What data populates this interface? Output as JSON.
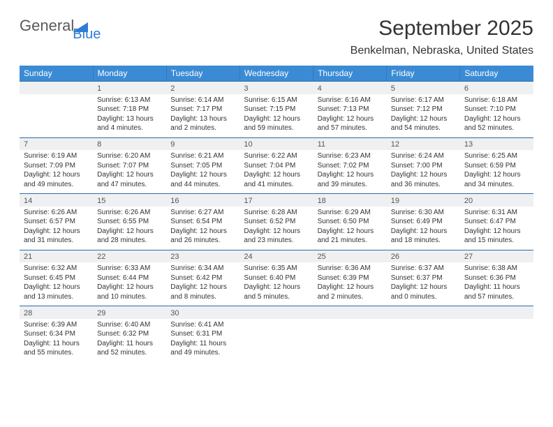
{
  "logo": {
    "general": "General",
    "blue": "Blue"
  },
  "title": "September 2025",
  "location": "Benkelman, Nebraska, United States",
  "colors": {
    "header_bg": "#3b8bd4",
    "header_text": "#ffffff",
    "daynum_bg": "#eef0f1",
    "row_border": "#2f6aa8",
    "text": "#333333",
    "logo_gray": "#5a5a5a",
    "logo_blue": "#2e7cd6"
  },
  "weekdays": [
    "Sunday",
    "Monday",
    "Tuesday",
    "Wednesday",
    "Thursday",
    "Friday",
    "Saturday"
  ],
  "weeks": [
    [
      {
        "n": "",
        "sr": "",
        "ss": "",
        "dl": ""
      },
      {
        "n": "1",
        "sr": "Sunrise: 6:13 AM",
        "ss": "Sunset: 7:18 PM",
        "dl": "Daylight: 13 hours and 4 minutes."
      },
      {
        "n": "2",
        "sr": "Sunrise: 6:14 AM",
        "ss": "Sunset: 7:17 PM",
        "dl": "Daylight: 13 hours and 2 minutes."
      },
      {
        "n": "3",
        "sr": "Sunrise: 6:15 AM",
        "ss": "Sunset: 7:15 PM",
        "dl": "Daylight: 12 hours and 59 minutes."
      },
      {
        "n": "4",
        "sr": "Sunrise: 6:16 AM",
        "ss": "Sunset: 7:13 PM",
        "dl": "Daylight: 12 hours and 57 minutes."
      },
      {
        "n": "5",
        "sr": "Sunrise: 6:17 AM",
        "ss": "Sunset: 7:12 PM",
        "dl": "Daylight: 12 hours and 54 minutes."
      },
      {
        "n": "6",
        "sr": "Sunrise: 6:18 AM",
        "ss": "Sunset: 7:10 PM",
        "dl": "Daylight: 12 hours and 52 minutes."
      }
    ],
    [
      {
        "n": "7",
        "sr": "Sunrise: 6:19 AM",
        "ss": "Sunset: 7:09 PM",
        "dl": "Daylight: 12 hours and 49 minutes."
      },
      {
        "n": "8",
        "sr": "Sunrise: 6:20 AM",
        "ss": "Sunset: 7:07 PM",
        "dl": "Daylight: 12 hours and 47 minutes."
      },
      {
        "n": "9",
        "sr": "Sunrise: 6:21 AM",
        "ss": "Sunset: 7:05 PM",
        "dl": "Daylight: 12 hours and 44 minutes."
      },
      {
        "n": "10",
        "sr": "Sunrise: 6:22 AM",
        "ss": "Sunset: 7:04 PM",
        "dl": "Daylight: 12 hours and 41 minutes."
      },
      {
        "n": "11",
        "sr": "Sunrise: 6:23 AM",
        "ss": "Sunset: 7:02 PM",
        "dl": "Daylight: 12 hours and 39 minutes."
      },
      {
        "n": "12",
        "sr": "Sunrise: 6:24 AM",
        "ss": "Sunset: 7:00 PM",
        "dl": "Daylight: 12 hours and 36 minutes."
      },
      {
        "n": "13",
        "sr": "Sunrise: 6:25 AM",
        "ss": "Sunset: 6:59 PM",
        "dl": "Daylight: 12 hours and 34 minutes."
      }
    ],
    [
      {
        "n": "14",
        "sr": "Sunrise: 6:26 AM",
        "ss": "Sunset: 6:57 PM",
        "dl": "Daylight: 12 hours and 31 minutes."
      },
      {
        "n": "15",
        "sr": "Sunrise: 6:26 AM",
        "ss": "Sunset: 6:55 PM",
        "dl": "Daylight: 12 hours and 28 minutes."
      },
      {
        "n": "16",
        "sr": "Sunrise: 6:27 AM",
        "ss": "Sunset: 6:54 PM",
        "dl": "Daylight: 12 hours and 26 minutes."
      },
      {
        "n": "17",
        "sr": "Sunrise: 6:28 AM",
        "ss": "Sunset: 6:52 PM",
        "dl": "Daylight: 12 hours and 23 minutes."
      },
      {
        "n": "18",
        "sr": "Sunrise: 6:29 AM",
        "ss": "Sunset: 6:50 PM",
        "dl": "Daylight: 12 hours and 21 minutes."
      },
      {
        "n": "19",
        "sr": "Sunrise: 6:30 AM",
        "ss": "Sunset: 6:49 PM",
        "dl": "Daylight: 12 hours and 18 minutes."
      },
      {
        "n": "20",
        "sr": "Sunrise: 6:31 AM",
        "ss": "Sunset: 6:47 PM",
        "dl": "Daylight: 12 hours and 15 minutes."
      }
    ],
    [
      {
        "n": "21",
        "sr": "Sunrise: 6:32 AM",
        "ss": "Sunset: 6:45 PM",
        "dl": "Daylight: 12 hours and 13 minutes."
      },
      {
        "n": "22",
        "sr": "Sunrise: 6:33 AM",
        "ss": "Sunset: 6:44 PM",
        "dl": "Daylight: 12 hours and 10 minutes."
      },
      {
        "n": "23",
        "sr": "Sunrise: 6:34 AM",
        "ss": "Sunset: 6:42 PM",
        "dl": "Daylight: 12 hours and 8 minutes."
      },
      {
        "n": "24",
        "sr": "Sunrise: 6:35 AM",
        "ss": "Sunset: 6:40 PM",
        "dl": "Daylight: 12 hours and 5 minutes."
      },
      {
        "n": "25",
        "sr": "Sunrise: 6:36 AM",
        "ss": "Sunset: 6:39 PM",
        "dl": "Daylight: 12 hours and 2 minutes."
      },
      {
        "n": "26",
        "sr": "Sunrise: 6:37 AM",
        "ss": "Sunset: 6:37 PM",
        "dl": "Daylight: 12 hours and 0 minutes."
      },
      {
        "n": "27",
        "sr": "Sunrise: 6:38 AM",
        "ss": "Sunset: 6:36 PM",
        "dl": "Daylight: 11 hours and 57 minutes."
      }
    ],
    [
      {
        "n": "28",
        "sr": "Sunrise: 6:39 AM",
        "ss": "Sunset: 6:34 PM",
        "dl": "Daylight: 11 hours and 55 minutes."
      },
      {
        "n": "29",
        "sr": "Sunrise: 6:40 AM",
        "ss": "Sunset: 6:32 PM",
        "dl": "Daylight: 11 hours and 52 minutes."
      },
      {
        "n": "30",
        "sr": "Sunrise: 6:41 AM",
        "ss": "Sunset: 6:31 PM",
        "dl": "Daylight: 11 hours and 49 minutes."
      },
      {
        "n": "",
        "sr": "",
        "ss": "",
        "dl": ""
      },
      {
        "n": "",
        "sr": "",
        "ss": "",
        "dl": ""
      },
      {
        "n": "",
        "sr": "",
        "ss": "",
        "dl": ""
      },
      {
        "n": "",
        "sr": "",
        "ss": "",
        "dl": ""
      }
    ]
  ]
}
